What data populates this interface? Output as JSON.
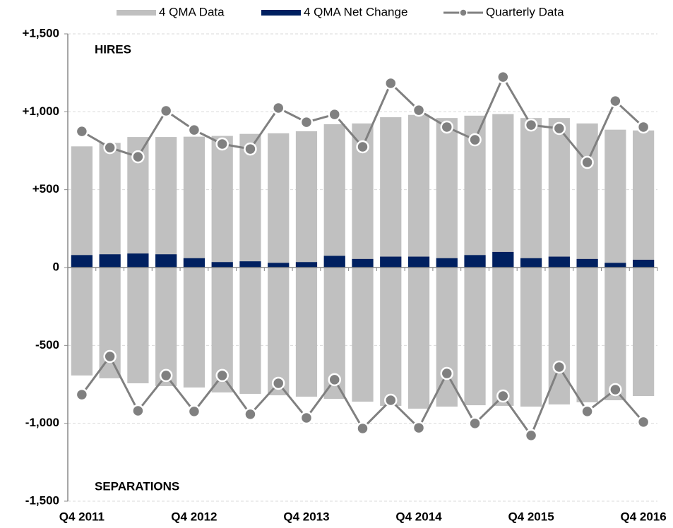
{
  "chart_data": {
    "type": "bar",
    "categories": [
      "Q4 2011",
      null,
      null,
      null,
      "Q4 2012",
      null,
      null,
      null,
      "Q4 2013",
      null,
      null,
      null,
      "Q4 2014",
      null,
      null,
      null,
      "Q4 2015",
      null,
      null,
      null,
      "Q4 2016"
    ],
    "series": [
      {
        "name": "4 QMA Data",
        "kind": "bar",
        "color": "#c0c0c0",
        "values": [
          778,
          800,
          838,
          838,
          840,
          845,
          858,
          862,
          875,
          920,
          925,
          965,
          980,
          960,
          975,
          985,
          960,
          960,
          925,
          885,
          880
        ],
        "separations": [
          -693,
          -711,
          -743,
          -761,
          -770,
          -802,
          -811,
          -820,
          -829,
          -843,
          -861,
          -888,
          -906,
          -893,
          -884,
          -888,
          -893,
          -879,
          -865,
          -852,
          -825
        ]
      },
      {
        "name": "4 QMA Net Change",
        "kind": "bar",
        "color": "#002060",
        "values": [
          80,
          85,
          90,
          85,
          60,
          35,
          40,
          30,
          35,
          75,
          55,
          70,
          70,
          60,
          80,
          100,
          60,
          70,
          55,
          30,
          50
        ]
      },
      {
        "name": "Quarterly Data",
        "kind": "line",
        "color": "#808080",
        "values": [
          874,
          770,
          711,
          1006,
          883,
          793,
          761,
          1024,
          933,
          983,
          775,
          1183,
          1010,
          902,
          820,
          1223,
          915,
          893,
          675,
          1069,
          902
        ],
        "separations": [
          -816,
          -571,
          -920,
          -693,
          -924,
          -693,
          -942,
          -743,
          -965,
          -720,
          -1033,
          -852,
          -1029,
          -680,
          -1001,
          -825,
          -1078,
          -639,
          -924,
          -784,
          -992
        ]
      }
    ],
    "annotations": [
      "HIRES",
      "SEPARATIONS"
    ],
    "ylim": [
      -1500,
      1500
    ],
    "yticks": [
      {
        "value": 1500,
        "label": "+1,500"
      },
      {
        "value": 1000,
        "label": "+1,000"
      },
      {
        "value": 500,
        "label": "+500"
      },
      0,
      {
        "value": -500,
        "label": "-500"
      },
      {
        "value": -1000,
        "label": "-1,000"
      },
      {
        "value": -1500,
        "label": "-1,500"
      }
    ],
    "negative_label_color": "#ff0000",
    "grid": true,
    "legend": "top"
  }
}
